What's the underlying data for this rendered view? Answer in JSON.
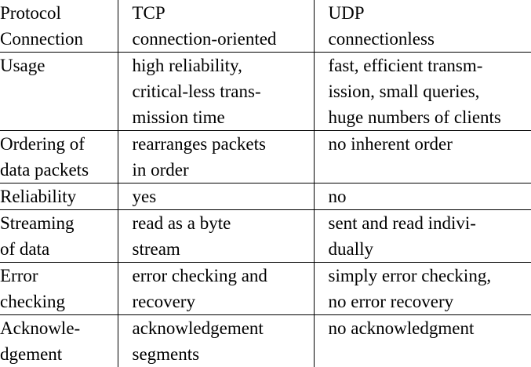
{
  "table": {
    "headers": [
      "Protocol",
      "TCP",
      "UDP"
    ],
    "rows": [
      {
        "label": [
          "Connection"
        ],
        "tcp": [
          "connection-oriented"
        ],
        "udp": [
          "connectionless"
        ]
      },
      {
        "label": [
          "Usage"
        ],
        "tcp": [
          "high reliability,",
          "critical-less trans-",
          "mission time"
        ],
        "udp": [
          "fast, efficient transm-",
          "ission, small queries,",
          "huge numbers of clients"
        ]
      },
      {
        "label": [
          "Ordering of",
          "data packets"
        ],
        "tcp": [
          "rearranges packets",
          "in order"
        ],
        "udp": [
          "no inherent order"
        ]
      },
      {
        "label": [
          "Reliability"
        ],
        "tcp": [
          "yes"
        ],
        "udp": [
          "no"
        ]
      },
      {
        "label": [
          "Streaming",
          "of data"
        ],
        "tcp": [
          "read as a byte",
          "stream"
        ],
        "udp": [
          "sent and read indivi-",
          "dually"
        ]
      },
      {
        "label": [
          "Error",
          "checking"
        ],
        "tcp": [
          "error checking and",
          "recovery"
        ],
        "udp": [
          "simply error checking,",
          "no error recovery"
        ]
      },
      {
        "label": [
          "Acknowle-",
          "dgement"
        ],
        "tcp": [
          "acknowledgement",
          "segments"
        ],
        "udp": [
          "no acknowledgment"
        ]
      }
    ]
  }
}
